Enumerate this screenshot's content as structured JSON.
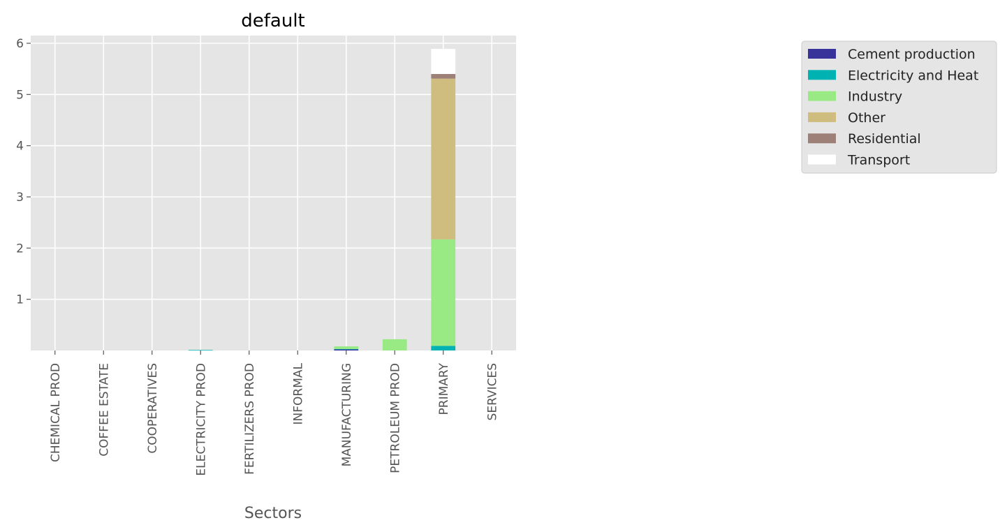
{
  "chart_data": {
    "type": "bar",
    "stacked": true,
    "title": "default",
    "xlabel": "Sectors",
    "ylabel": "",
    "ylim": [
      0,
      6.15
    ],
    "yticks": [
      1,
      2,
      3,
      4,
      5,
      6
    ],
    "grid": true,
    "legend_position": "upper-right-outside",
    "categories": [
      "CHEMICAL PROD",
      "COFFEE ESTATE",
      "COOPERATIVES",
      "ELECTRICITY PROD",
      "FERTILIZERS PROD",
      "INFORMAL",
      "MANUFACTURING",
      "PETROLEUM PROD",
      "PRIMARY",
      "SERVICES"
    ],
    "series": [
      {
        "name": "Cement production",
        "color": "#38339a",
        "values": [
          0,
          0,
          0,
          0,
          0,
          0,
          0.02,
          0,
          0,
          0
        ]
      },
      {
        "name": "Electricity and Heat",
        "color": "#00b2b2",
        "values": [
          0,
          0,
          0,
          0.01,
          0,
          0,
          0.01,
          0,
          0.09,
          0
        ]
      },
      {
        "name": "Industry",
        "color": "#99ea85",
        "values": [
          0,
          0,
          0,
          0,
          0,
          0,
          0.05,
          0.22,
          2.08,
          0
        ]
      },
      {
        "name": "Other",
        "color": "#cfbd7f",
        "values": [
          0,
          0,
          0,
          0,
          0,
          0,
          0,
          0,
          3.14,
          0
        ]
      },
      {
        "name": "Residential",
        "color": "#9d8078",
        "values": [
          0,
          0,
          0,
          0,
          0,
          0,
          0,
          0,
          0.09,
          0
        ]
      },
      {
        "name": "Transport",
        "color": "#ffffff",
        "values": [
          0,
          0,
          0,
          0,
          0,
          0,
          0,
          0,
          0.49,
          0
        ]
      }
    ]
  }
}
